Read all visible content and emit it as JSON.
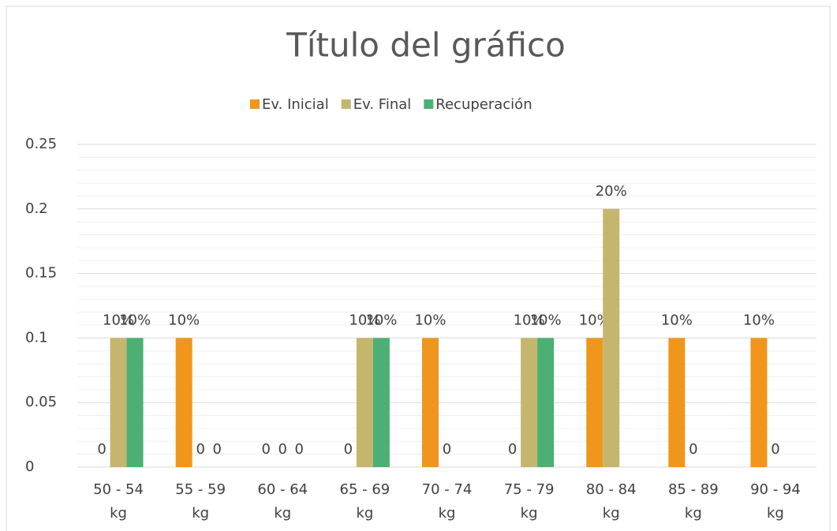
{
  "chart_data": {
    "type": "bar",
    "title": "Título del gráfico",
    "categories": [
      "50 - 54 kg",
      "55 - 59 kg",
      "60 - 64 kg",
      "65 - 69 kg",
      "70 - 74 kg",
      "75 - 79 kg",
      "80 - 84 kg",
      "85 - 89 kg",
      "90 - 94 kg"
    ],
    "series": [
      {
        "name": "Ev. Inicial",
        "color": "#f0961d",
        "values": [
          0,
          0.1,
          0,
          0,
          0.1,
          0,
          0.1,
          0.1,
          0.1
        ],
        "value_labels": [
          "0",
          "10%",
          "0",
          "0",
          "10%",
          "0",
          "10%",
          "10%",
          "10%"
        ]
      },
      {
        "name": "Ev. Final",
        "color": "#c4b66d",
        "values": [
          0.1,
          0,
          0,
          0.1,
          0,
          0.1,
          0.2,
          0,
          0
        ],
        "value_labels": [
          "10%",
          "0",
          "0",
          "10%",
          "0",
          "10%",
          "20%",
          "0",
          "0"
        ]
      },
      {
        "name": "Recuperación",
        "color": "#4caf73",
        "values": [
          0.1,
          0,
          0,
          0.1,
          null,
          0.1,
          null,
          null,
          null
        ],
        "value_labels": [
          "10%",
          "0",
          "0",
          "10%",
          null,
          "10%",
          null,
          null,
          null
        ]
      }
    ],
    "ylim": [
      0,
      0.25
    ],
    "yticks": [
      0,
      0.05,
      0.1,
      0.15,
      0.2,
      0.25
    ],
    "minor_yticks": [
      0.01,
      0.02,
      0.03,
      0.04,
      0.06,
      0.07,
      0.08,
      0.09,
      0.11,
      0.12,
      0.13,
      0.14,
      0.16,
      0.17,
      0.18,
      0.19,
      0.21,
      0.22,
      0.23,
      0.24
    ],
    "grid": true,
    "legend": "top"
  }
}
